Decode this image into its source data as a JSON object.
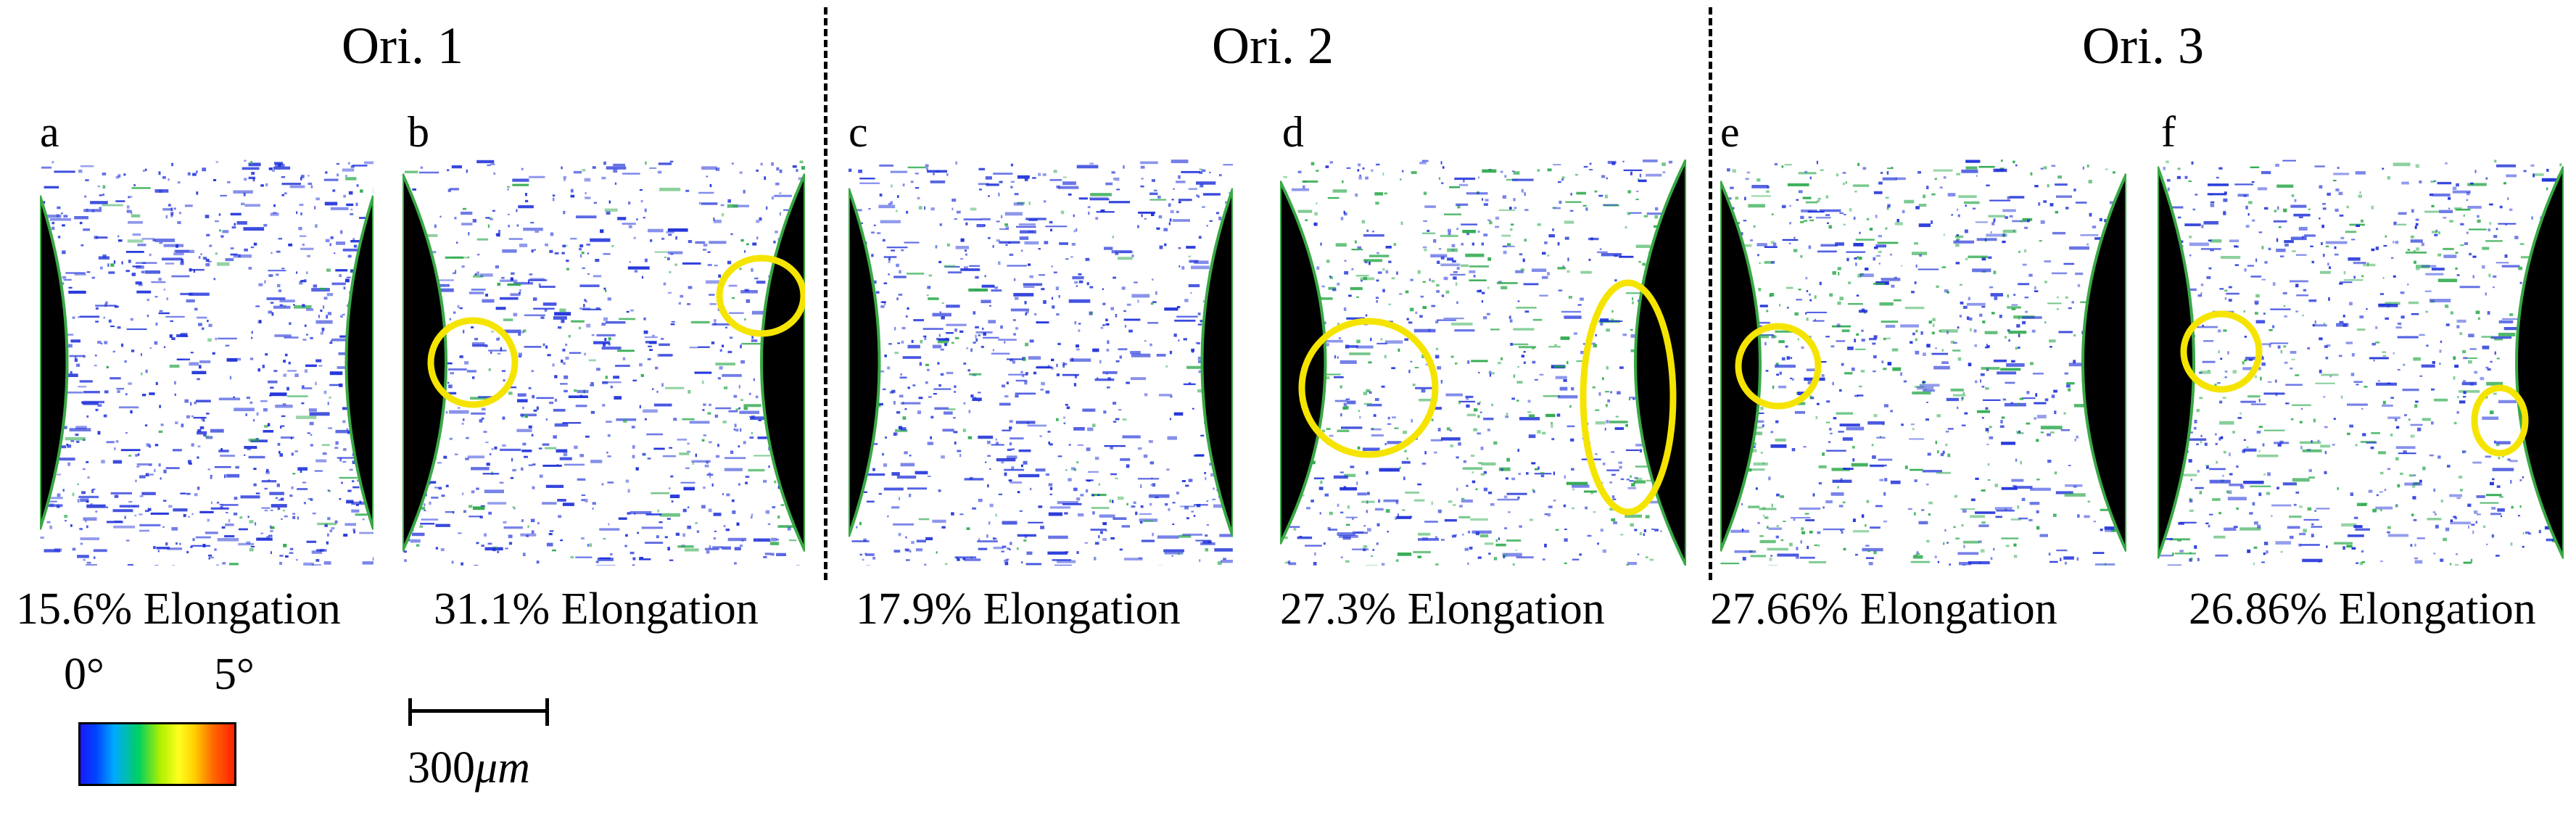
{
  "orientations": [
    {
      "label": "Ori. 1"
    },
    {
      "label": "Ori. 2"
    },
    {
      "label": "Ori. 3"
    }
  ],
  "panels": [
    {
      "letter": "a",
      "caption": "15.6% Elongation",
      "highlights": 0
    },
    {
      "letter": "b",
      "caption": "31.1% Elongation",
      "highlights": 2
    },
    {
      "letter": "c",
      "caption": "17.9% Elongation",
      "highlights": 0
    },
    {
      "letter": "d",
      "caption": "27.3% Elongation",
      "highlights": 2
    },
    {
      "letter": "e",
      "caption": "27.66% Elongation",
      "highlights": 1
    },
    {
      "letter": "f",
      "caption": "26.86% Elongation",
      "highlights": 2
    }
  ],
  "legend": {
    "min": "0°",
    "max": "5°",
    "colormap": [
      "#1a1aff",
      "#00aaff",
      "#00d060",
      "#ffff20",
      "#ff6a00",
      "#ff2000"
    ]
  },
  "scale_bar": {
    "value": "300",
    "unit": "μm"
  },
  "colors": {
    "highlight": "#f5e400",
    "notch": "#000000",
    "misorientation_low": "#1a2dd8",
    "misorientation_mid": "#2aa84a"
  }
}
